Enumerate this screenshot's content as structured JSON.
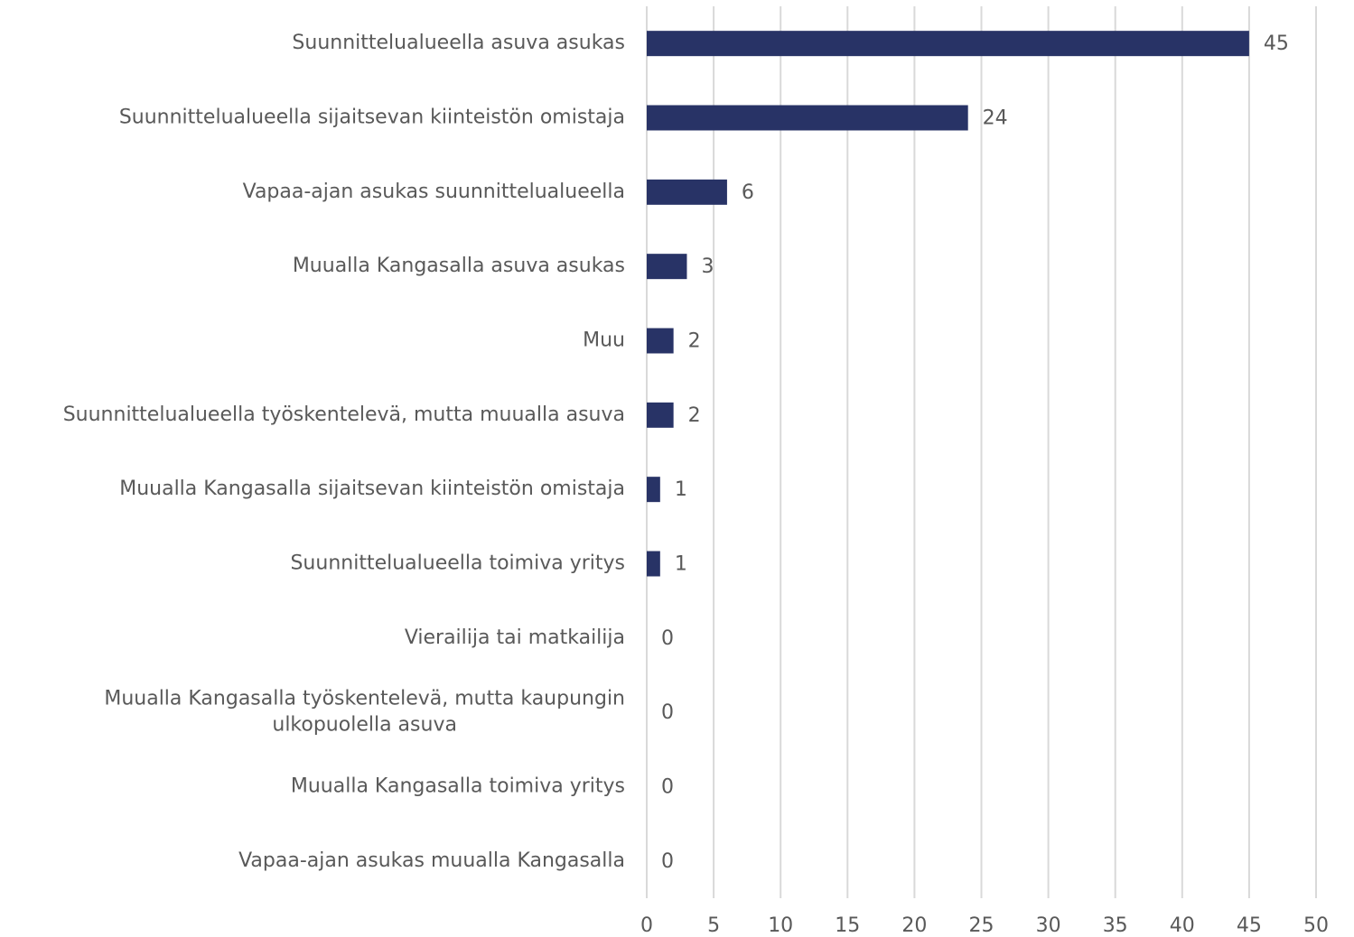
{
  "chart_data": {
    "type": "hbar",
    "categories": [
      "Suunnittelualueella asuva asukas",
      "Suunnittelualueella sijaitsevan kiinteistön omistaja",
      "Vapaa-ajan asukas suunnittelualueella",
      "Muualla Kangasalla asuva asukas",
      "Muu",
      "Suunnittelualueella työskentelevä, mutta muualla asuva",
      "Muualla Kangasalla sijaitsevan kiinteistön omistaja",
      "Suunnittelualueella toimiva yritys",
      "Vierailija tai matkailija",
      "Muualla Kangasalla työskentelevä, mutta kaupungin ulkopuolella asuva",
      "Muualla Kangasalla toimiva yritys",
      "Vapaa-ajan asukas muualla Kangasalla"
    ],
    "values": [
      45,
      24,
      6,
      3,
      2,
      2,
      1,
      1,
      0,
      0,
      0,
      0
    ],
    "color": "#283366",
    "xlim": [
      0,
      50
    ],
    "xticks": [
      0,
      5,
      10,
      15,
      20,
      25,
      30,
      35,
      40,
      45,
      50
    ],
    "grid": true
  }
}
